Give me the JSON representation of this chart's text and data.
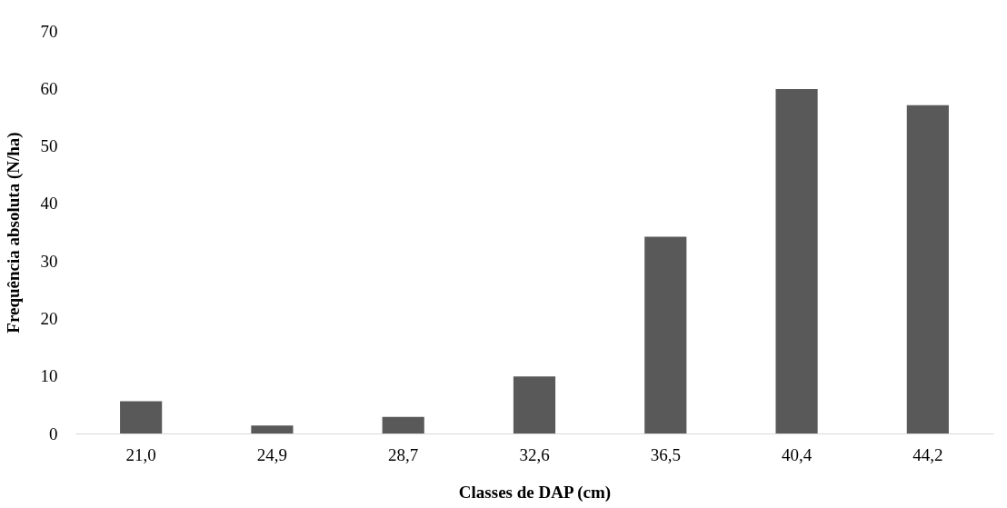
{
  "chart_data": {
    "type": "bar",
    "xlabel": "Classes de DAP (cm)",
    "ylabel": "Frequência absoluta (N/ha)",
    "categories": [
      "21,0",
      "24,9",
      "28,7",
      "32,6",
      "36,5",
      "40,4",
      "44,2"
    ],
    "values": [
      5.6,
      1.4,
      2.9,
      9.9,
      34.2,
      59.9,
      57.1
    ],
    "color": "#595959",
    "ylim": [
      0,
      70
    ],
    "yticks": [
      0,
      10,
      20,
      30,
      40,
      50,
      60,
      70
    ],
    "grid": false
  }
}
